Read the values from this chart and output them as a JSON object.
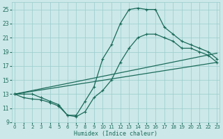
{
  "xlabel": "Humidex (Indice chaleur)",
  "xlim": [
    0,
    23
  ],
  "ylim": [
    9,
    26
  ],
  "yticks": [
    9,
    11,
    13,
    15,
    17,
    19,
    21,
    23,
    25
  ],
  "xticks": [
    0,
    1,
    2,
    3,
    4,
    5,
    6,
    7,
    8,
    9,
    10,
    11,
    12,
    13,
    14,
    15,
    16,
    17,
    18,
    19,
    20,
    21,
    22,
    23
  ],
  "bg_color": "#cce8e8",
  "grid_color": "#99cccc",
  "line_color": "#1a6b5a",
  "curve1": [
    13,
    13,
    13,
    12.5,
    12,
    11.5,
    10,
    10,
    12,
    14,
    18,
    20,
    23,
    25,
    25.2,
    25,
    25,
    22.5,
    21.5,
    20.5,
    20,
    19.5,
    19,
    18
  ],
  "curve2": [
    13,
    12.5,
    12.3,
    12.2,
    11.8,
    11.3,
    10.0,
    9.8,
    10.5,
    12.5,
    13.5,
    15,
    17.5,
    19.5,
    21,
    21.5,
    21.5,
    21,
    20.5,
    19.5,
    19.5,
    19,
    18.5,
    17.5
  ],
  "line3": [
    [
      0,
      23
    ],
    [
      13,
      17.5
    ]
  ],
  "line4": [
    [
      0,
      23
    ],
    [
      13,
      18.8
    ]
  ]
}
